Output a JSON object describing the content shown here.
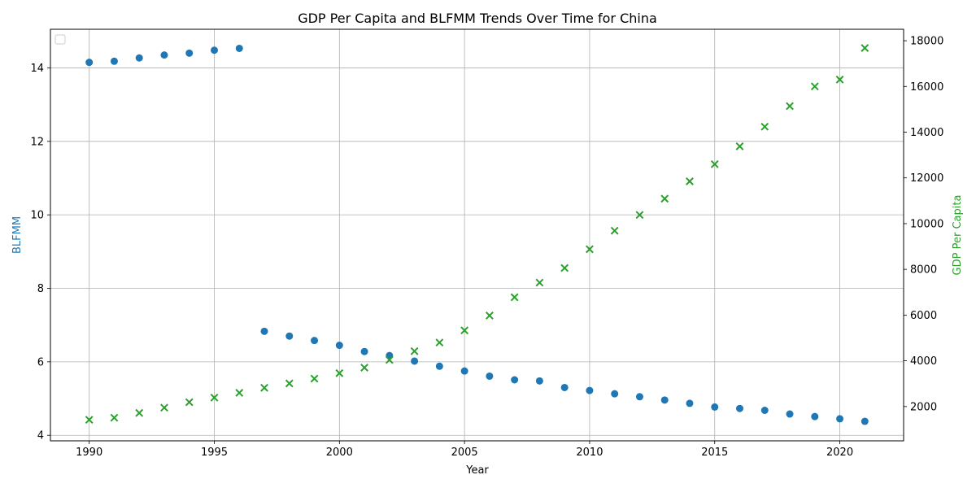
{
  "chart_data": {
    "type": "scatter",
    "title": "GDP Per Capita and BLFMM Trends Over Time for China",
    "xlabel": "Year",
    "ylabel_left": "BLFMM",
    "ylabel_right": "GDP Per Capita",
    "x_ticks": [
      1990,
      1995,
      2000,
      2005,
      2010,
      2015,
      2020
    ],
    "y_left_ticks": [
      4,
      6,
      8,
      10,
      12,
      14
    ],
    "y_right_ticks": [
      2000,
      4000,
      6000,
      8000,
      10000,
      12000,
      14000,
      16000,
      18000
    ],
    "xlim": [
      1988.45,
      2022.55
    ],
    "ylim_left": [
      3.85,
      15.05
    ],
    "ylim_right": [
      500,
      18500
    ],
    "grid": true,
    "legend": {
      "placement": "upper-left",
      "entries": []
    },
    "colors": {
      "blfmm": "#1f77b4",
      "gdp": "#2ca02c"
    },
    "x": [
      1990,
      1991,
      1992,
      1993,
      1994,
      1995,
      1996,
      1997,
      1998,
      1999,
      2000,
      2001,
      2002,
      2003,
      2004,
      2005,
      2006,
      2007,
      2008,
      2009,
      2010,
      2011,
      2012,
      2013,
      2014,
      2015,
      2016,
      2017,
      2018,
      2019,
      2020,
      2021
    ],
    "series": [
      {
        "key": "blfmm",
        "axis": "left",
        "marker": "circle",
        "values": [
          14.15,
          14.18,
          14.27,
          14.35,
          14.4,
          14.48,
          14.53,
          6.83,
          6.7,
          6.58,
          6.45,
          6.28,
          6.17,
          6.02,
          5.88,
          5.75,
          5.61,
          5.51,
          5.48,
          5.3,
          5.22,
          5.13,
          5.05,
          4.96,
          4.87,
          4.77,
          4.73,
          4.68,
          4.58,
          4.51,
          4.45,
          4.38
        ]
      },
      {
        "key": "gdp",
        "axis": "right",
        "marker": "x",
        "values": [
          1420,
          1510,
          1720,
          1950,
          2190,
          2390,
          2600,
          2820,
          3010,
          3220,
          3460,
          3700,
          4040,
          4420,
          4800,
          5330,
          5980,
          6780,
          7420,
          8060,
          8880,
          9690,
          10380,
          11090,
          11850,
          12600,
          13380,
          14240,
          15140,
          16000,
          16300,
          17680
        ]
      }
    ]
  }
}
